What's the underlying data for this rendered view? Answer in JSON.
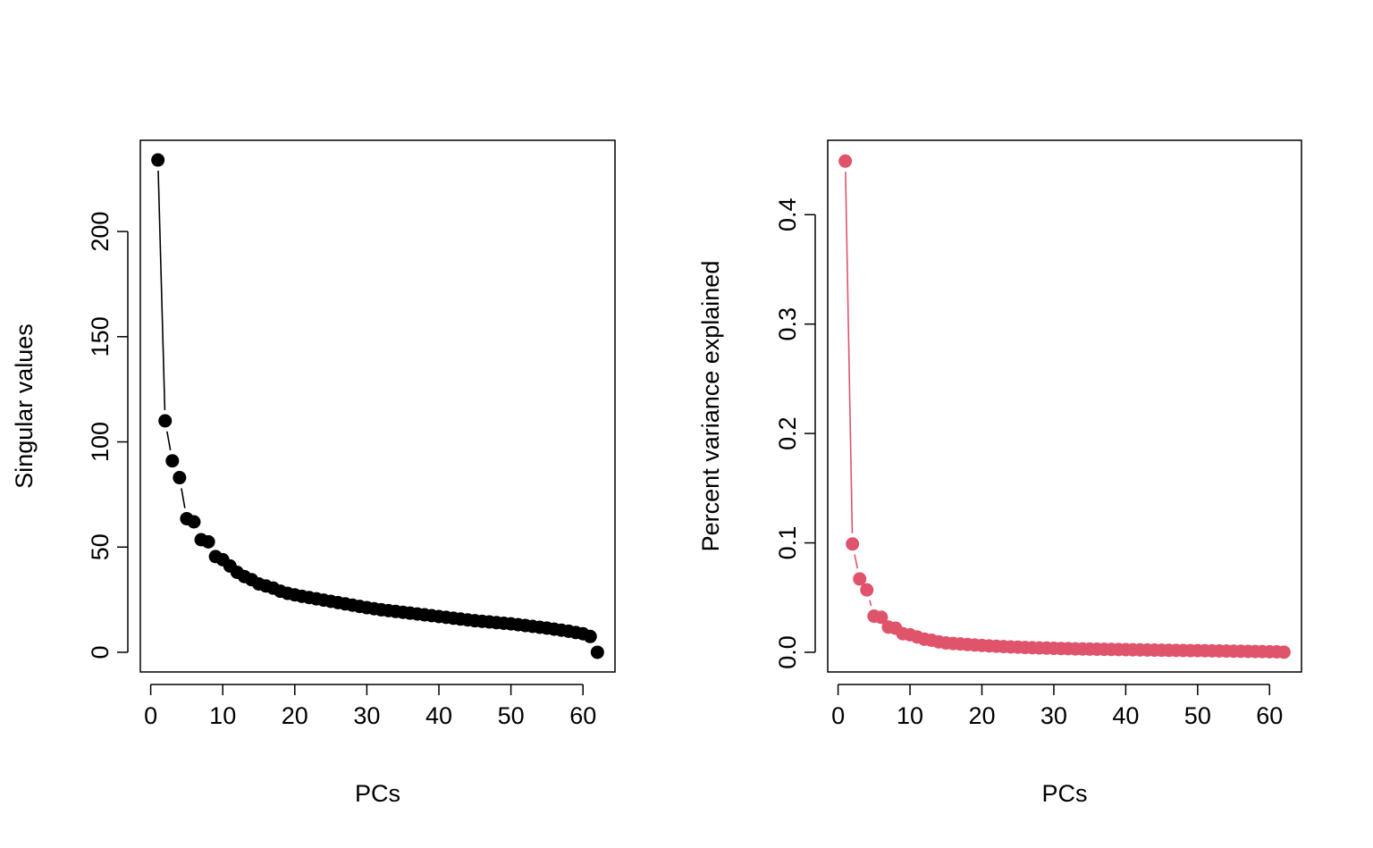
{
  "chart_data": [
    {
      "type": "scatter",
      "connected": true,
      "marker": "filled-circle",
      "color": "#000000",
      "xlabel": "PCs",
      "ylabel": "Singular values",
      "xlim": [
        1,
        62
      ],
      "ylim": [
        0,
        234
      ],
      "x_ticks": [
        0,
        10,
        20,
        30,
        40,
        50,
        60
      ],
      "y_ticks": [
        0,
        50,
        100,
        150,
        200
      ],
      "x": [
        1,
        2,
        3,
        4,
        5,
        6,
        7,
        8,
        9,
        10,
        11,
        12,
        13,
        14,
        15,
        16,
        17,
        18,
        19,
        20,
        21,
        22,
        23,
        24,
        25,
        26,
        27,
        28,
        29,
        30,
        31,
        32,
        33,
        34,
        35,
        36,
        37,
        38,
        39,
        40,
        41,
        42,
        43,
        44,
        45,
        46,
        47,
        48,
        49,
        50,
        51,
        52,
        53,
        54,
        55,
        56,
        57,
        58,
        59,
        60,
        61,
        62
      ],
      "values": [
        234,
        110,
        91,
        83,
        63.5,
        62,
        53.5,
        52.5,
        45.5,
        44,
        41,
        38,
        36,
        34.5,
        32.5,
        31.5,
        30.5,
        29,
        28,
        27.3,
        26.6,
        26,
        25.4,
        24.8,
        24.2,
        23.6,
        23,
        22.4,
        21.8,
        21.2,
        20.7,
        20.2,
        19.8,
        19.4,
        19,
        18.6,
        18.2,
        17.8,
        17.4,
        17,
        16.6,
        16.2,
        15.8,
        15.4,
        15,
        14.7,
        14.4,
        14.1,
        13.8,
        13.5,
        13.1,
        12.7,
        12.3,
        11.9,
        11.5,
        11,
        10.5,
        10,
        9.4,
        8.8,
        7.5,
        0
      ]
    },
    {
      "type": "scatter",
      "connected": true,
      "marker": "filled-circle",
      "color": "#DF536B",
      "xlabel": "PCs",
      "ylabel": "Percent variance explained",
      "xlim": [
        1,
        62
      ],
      "ylim": [
        0,
        0.45
      ],
      "x_ticks": [
        0,
        10,
        20,
        30,
        40,
        50,
        60
      ],
      "y_ticks": [
        "0.0",
        "0.1",
        "0.2",
        "0.3",
        "0.4"
      ],
      "x": [
        1,
        2,
        3,
        4,
        5,
        6,
        7,
        8,
        9,
        10,
        11,
        12,
        13,
        14,
        15,
        16,
        17,
        18,
        19,
        20,
        21,
        22,
        23,
        24,
        25,
        26,
        27,
        28,
        29,
        30,
        31,
        32,
        33,
        34,
        35,
        36,
        37,
        38,
        39,
        40,
        41,
        42,
        43,
        44,
        45,
        46,
        47,
        48,
        49,
        50,
        51,
        52,
        53,
        54,
        55,
        56,
        57,
        58,
        59,
        60,
        61,
        62
      ],
      "values": [
        0.449,
        0.099,
        0.067,
        0.057,
        0.033,
        0.032,
        0.023,
        0.022,
        0.017,
        0.016,
        0.014,
        0.012,
        0.011,
        0.0095,
        0.0085,
        0.008,
        0.0076,
        0.0071,
        0.0066,
        0.0062,
        0.0058,
        0.0055,
        0.0052,
        0.0049,
        0.0047,
        0.0044,
        0.0042,
        0.004,
        0.0038,
        0.0036,
        0.0034,
        0.0033,
        0.0031,
        0.003,
        0.0029,
        0.0028,
        0.0027,
        0.0026,
        0.0025,
        0.0024,
        0.0023,
        0.0022,
        0.0021,
        0.002,
        0.0019,
        0.0018,
        0.0017,
        0.0016,
        0.0015,
        0.0015,
        0.0014,
        0.0013,
        0.0012,
        0.0011,
        0.001,
        0.0009,
        0.0008,
        0.0007,
        0.0006,
        0.0005,
        0.0004,
        0.0001
      ]
    }
  ]
}
